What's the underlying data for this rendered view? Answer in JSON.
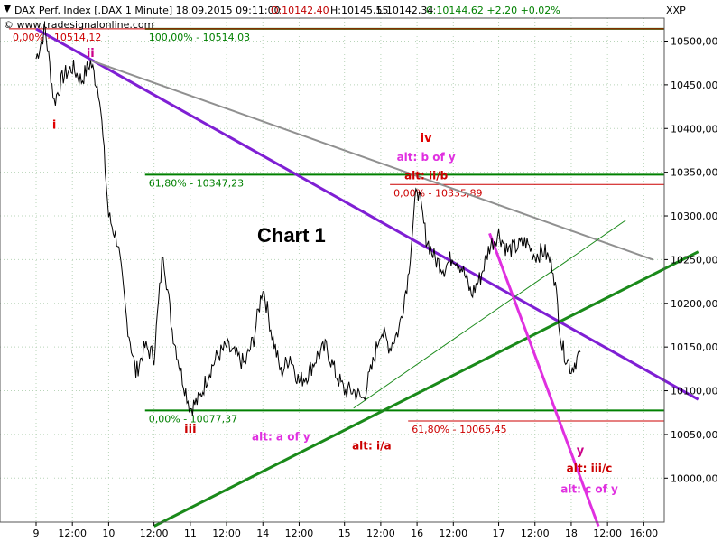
{
  "header": {
    "title": "DAX Perf. Index [.DAX  1 Minute] 18.09.2015 09:11:00",
    "open": "O:10142,40",
    "high": "H:10145,55",
    "low": "L:10142,34",
    "close": "C:10144,62 +2,20 +0,02%",
    "watermark": "© www.tradesignalonline.com",
    "axis_code": "XXP"
  },
  "chart_data": {
    "type": "line",
    "title": "Chart 1",
    "xlabel": "",
    "ylabel": "",
    "ylim": [
      9950,
      10530
    ],
    "grid": true,
    "y_ticks": [
      "10500,00",
      "10450,00",
      "10400,00",
      "10350,00",
      "10300,00",
      "10250,00",
      "10200,00",
      "10150,00",
      "10100,00",
      "10050,00",
      "10000,00"
    ],
    "x_ticks": [
      {
        "label": "9",
        "i": 0
      },
      {
        "label": "12:00",
        "i": 4
      },
      {
        "label": "10",
        "i": 8
      },
      {
        "label": "12:00",
        "i": 13
      },
      {
        "label": "11",
        "i": 17
      },
      {
        "label": "12:00",
        "i": 21
      },
      {
        "label": "14",
        "i": 25
      },
      {
        "label": "12:00",
        "i": 29
      },
      {
        "label": "15",
        "i": 34
      },
      {
        "label": "12:00",
        "i": 38
      },
      {
        "label": "16",
        "i": 42
      },
      {
        "label": "12:00",
        "i": 46
      },
      {
        "label": "17",
        "i": 51
      },
      {
        "label": "12:00",
        "i": 55
      },
      {
        "label": "18",
        "i": 59
      },
      {
        "label": "12:00",
        "i": 63
      },
      {
        "label": "16:00",
        "i": 67
      }
    ],
    "price": [
      10480,
      10514,
      10430,
      10460,
      10470,
      10455,
      10476,
      10440,
      10300,
      10270,
      10180,
      10120,
      10150,
      10140,
      10260,
      10170,
      10120,
      10080,
      10090,
      10120,
      10140,
      10150,
      10140,
      10130,
      10160,
      10220,
      10165,
      10120,
      10140,
      10110,
      10120,
      10140,
      10150,
      10120,
      10100,
      10100,
      10090,
      10125,
      10170,
      10150,
      10170,
      10230,
      10336,
      10275,
      10250,
      10240,
      10255,
      10240,
      10210,
      10230,
      10265,
      10280,
      10260,
      10265,
      10270,
      10255,
      10260,
      10242,
      10150,
      10125,
      10144
    ],
    "levels": [
      {
        "label": "100,00% - 10514,03",
        "value": 10514.03,
        "color": "#008000",
        "from_i": 15,
        "to_i": 73
      },
      {
        "label": "0,00% - 10514,12",
        "value": 10514.12,
        "color": "#cc0000",
        "from_i": 0,
        "to_i": 73
      },
      {
        "label": "61,80% - 10347,23",
        "value": 10347.23,
        "color": "#008000",
        "from_i": 15,
        "to_i": 73
      },
      {
        "label": "0,00% - 10335,89",
        "value": 10335.89,
        "color": "#cc0000",
        "from_i": 42,
        "to_i": 73
      },
      {
        "label": "0,00% - 10077,37",
        "value": 10077.37,
        "color": "#008000",
        "from_i": 15,
        "to_i": 73
      },
      {
        "label": "61,80% - 10065,45",
        "value": 10065.45,
        "color": "#cc0000",
        "from_i": 44,
        "to_i": 73
      }
    ],
    "trendlines": [
      {
        "color": "#7f1fd4",
        "width": 3,
        "points": [
          [
            0,
            10514
          ],
          [
            73,
            10090
          ]
        ]
      },
      {
        "color": "#909090",
        "width": 2,
        "points": [
          [
            6,
            10478
          ],
          [
            68,
            10250
          ]
        ]
      },
      {
        "color": "#1a8a1a",
        "width": 3,
        "points": [
          [
            13,
            9945
          ],
          [
            73,
            10259
          ]
        ]
      },
      {
        "color": "#1a8a1a",
        "width": 1,
        "points": [
          [
            35,
            10080
          ],
          [
            65,
            10295
          ]
        ]
      },
      {
        "color": "#e030e0",
        "width": 3,
        "points": [
          [
            50,
            10280
          ],
          [
            62,
            9945
          ]
        ]
      }
    ],
    "annotations": [
      {
        "text": "i",
        "i": 2,
        "value": 10400,
        "color": "#e00000",
        "kind": "wave"
      },
      {
        "text": "ii",
        "i": 6,
        "value": 10482,
        "color": "#cc0088",
        "kind": "wave"
      },
      {
        "text": "iii",
        "i": 17,
        "value": 10052,
        "color": "#cc0000",
        "kind": "wave"
      },
      {
        "text": "iv",
        "i": 43,
        "value": 10385,
        "color": "#e00000",
        "kind": "wave"
      },
      {
        "text": "alt: b of y",
        "i": 43,
        "value": 10363,
        "color": "#e030e0",
        "kind": "alt"
      },
      {
        "text": "alt: ii/b",
        "i": 43,
        "value": 10342,
        "color": "#cc0000",
        "kind": "alt"
      },
      {
        "text": "alt: a of y",
        "i": 27,
        "value": 10043,
        "color": "#e030e0",
        "kind": "alt"
      },
      {
        "text": "alt: i/a",
        "i": 37,
        "value": 10033,
        "color": "#cc0000",
        "kind": "alt"
      },
      {
        "text": "y",
        "i": 60,
        "value": 10027,
        "color": "#cc0088",
        "kind": "wave"
      },
      {
        "text": "alt: iii/c",
        "i": 61,
        "value": 10007,
        "color": "#cc0000",
        "kind": "alt"
      },
      {
        "text": "alt: c of y",
        "i": 61,
        "value": 9983,
        "color": "#e030e0",
        "kind": "alt"
      }
    ]
  }
}
